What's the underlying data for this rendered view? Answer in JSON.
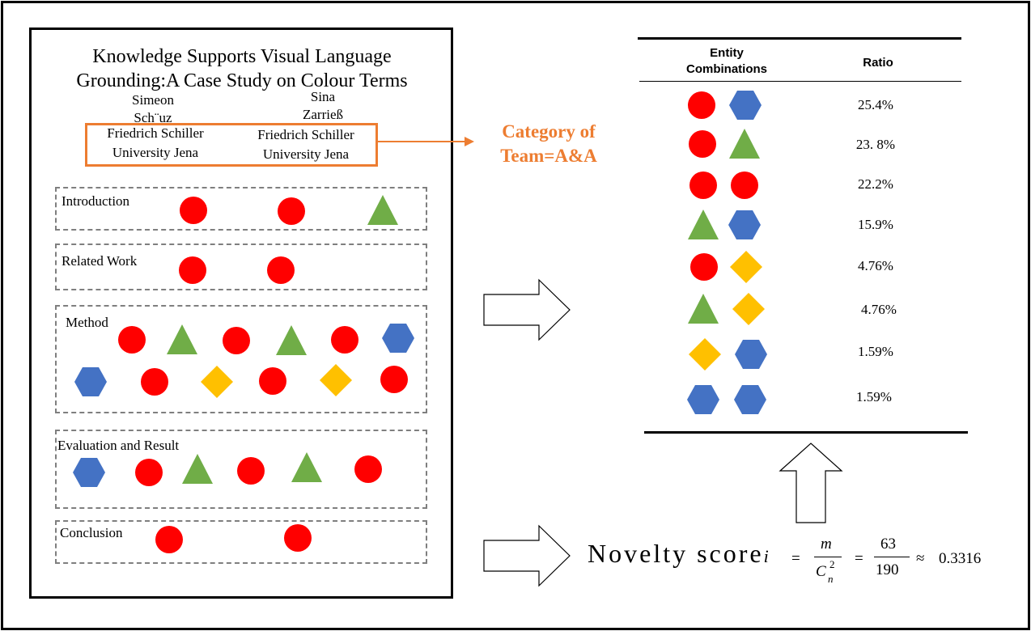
{
  "paper": {
    "title_line1": "Knowledge Supports Visual Language",
    "title_line2": "Grounding:A Case Study on Colour Terms",
    "author1_line1": "Simeon",
    "author1_line2": "Sch¨uz",
    "author2_line1": "Sina",
    "author2_line2": "Zarrieß",
    "affiliation1_line1": "Friedrich Schiller",
    "affiliation1_line2": "University Jena",
    "affiliation2_line1": "Friedrich Schiller",
    "affiliation2_line2": "University Jena"
  },
  "sections": [
    {
      "label": "Introduction",
      "shapes": [
        "circle",
        "circle",
        "triangle"
      ]
    },
    {
      "label": "Related Work",
      "shapes": [
        "circle",
        "circle"
      ]
    },
    {
      "label": "Method",
      "shapes": [
        "circle",
        "triangle",
        "circle",
        "triangle",
        "circle",
        "hexagon",
        "hexagon",
        "circle",
        "diamond",
        "circle",
        "diamond",
        "circle"
      ]
    },
    {
      "label": "Evaluation and Result",
      "shapes": [
        "hexagon",
        "circle",
        "triangle",
        "circle",
        "triangle",
        "circle"
      ]
    },
    {
      "label": "Conclusion",
      "shapes": [
        "circle",
        "circle"
      ]
    }
  ],
  "category": {
    "line1": "Category of",
    "line2": "Team=A&A"
  },
  "table": {
    "header_col1_line1": "Entity",
    "header_col1_line2": "Combinations",
    "header_col2": "Ratio",
    "rows": [
      {
        "shapes": [
          "circle",
          "hexagon"
        ],
        "ratio": "25.4%"
      },
      {
        "shapes": [
          "circle",
          "triangle"
        ],
        "ratio": "23. 8%"
      },
      {
        "shapes": [
          "circle",
          "circle"
        ],
        "ratio": "22.2%"
      },
      {
        "shapes": [
          "triangle",
          "hexagon"
        ],
        "ratio": "15.9%"
      },
      {
        "shapes": [
          "circle",
          "diamond"
        ],
        "ratio": "4.76%"
      },
      {
        "shapes": [
          "triangle",
          "diamond"
        ],
        "ratio": "4.76%"
      },
      {
        "shapes": [
          "diamond",
          "hexagon"
        ],
        "ratio": "1.59%"
      },
      {
        "shapes": [
          "hexagon",
          "hexagon"
        ],
        "ratio": "1.59%"
      }
    ]
  },
  "formula": {
    "label": "Novelty score",
    "subscript": "i",
    "eq1": "=",
    "frac1_num": "m",
    "frac1_den": "C",
    "den_super": "2",
    "den_sub": "n",
    "eq2": "=",
    "frac2_num": "63",
    "frac2_den": "190",
    "approx": "≈",
    "value": "0.3316"
  },
  "colors": {
    "circle": "#FF0000",
    "triangle": "#70AD47",
    "hexagon": "#4472C4",
    "diamond": "#FFC000",
    "accent": "#ED7D31"
  }
}
